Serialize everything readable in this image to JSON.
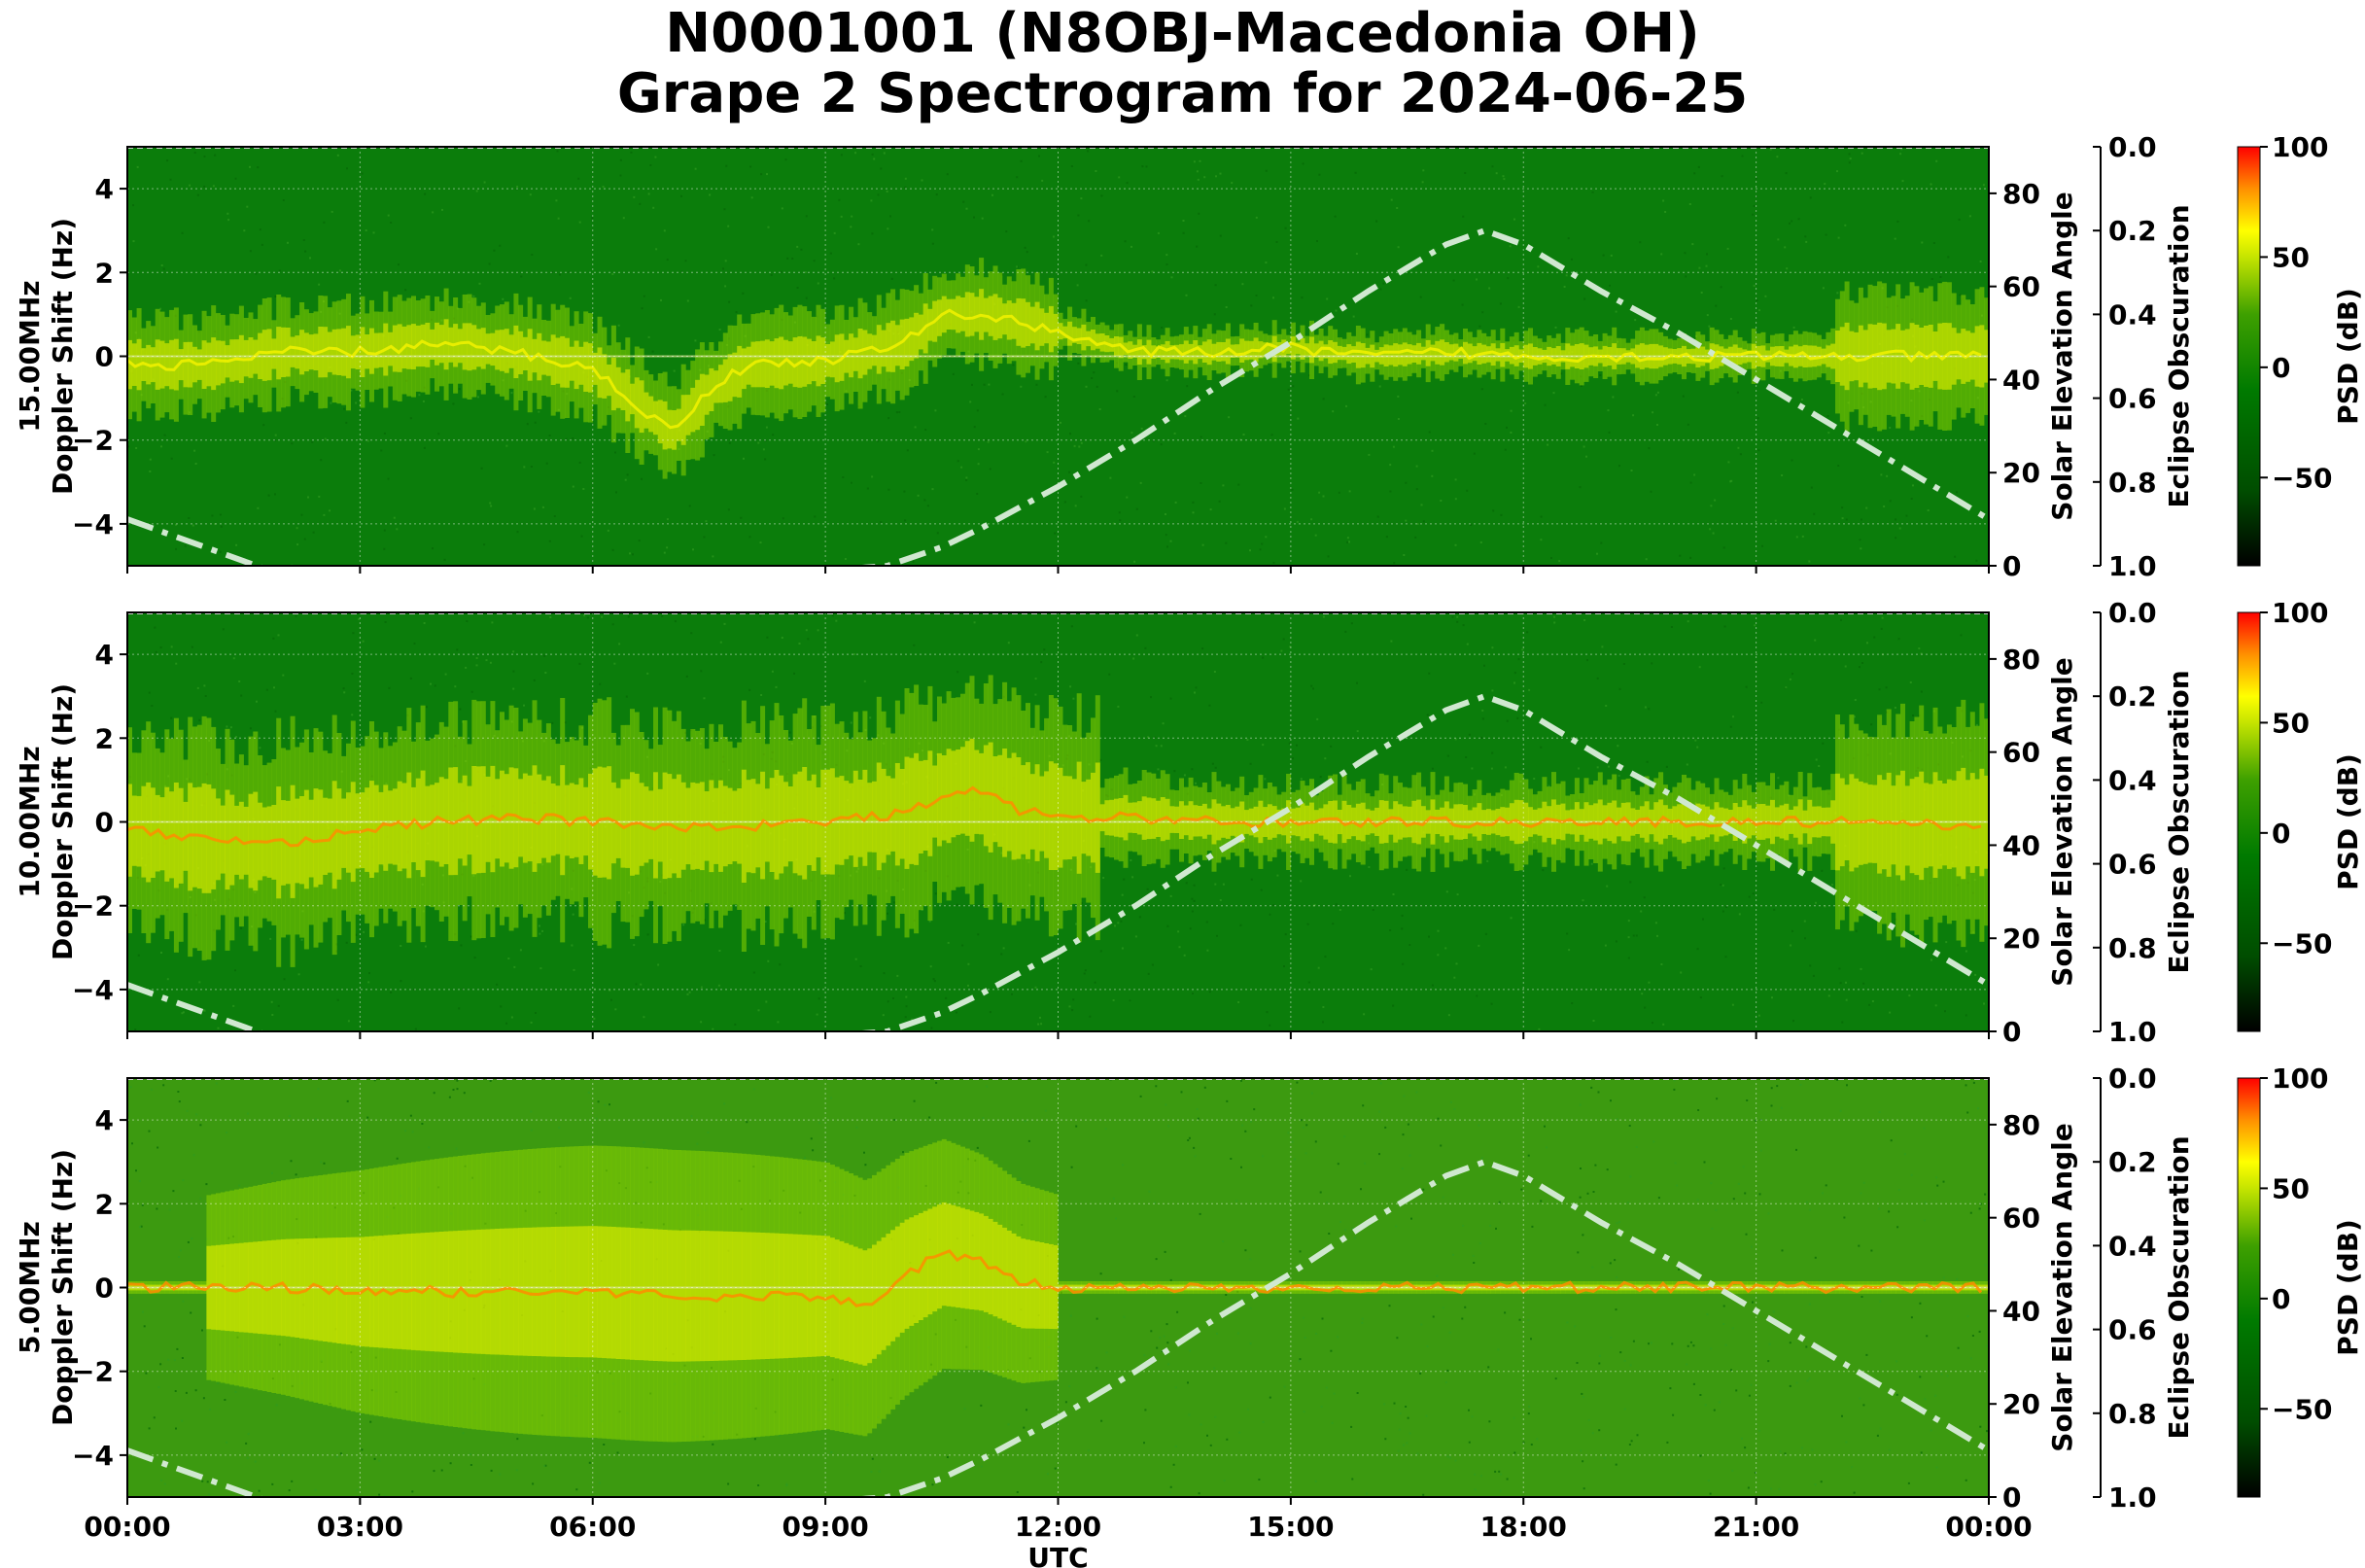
{
  "title": {
    "line1": "N0001001 (N8OBJ-Macedonia OH)",
    "line2": "Grape 2 Spectrogram for 2024-06-25"
  },
  "colors": {
    "colormap": [
      "#000000",
      "#006400",
      "#008000",
      "#7fbf00",
      "#ffff00",
      "#ff8000",
      "#ff0000"
    ],
    "elevation_curve": "#c8e6c8",
    "grid": "#ffffff"
  },
  "chart_data": {
    "type": "heatmap",
    "xlabel": "UTC",
    "x_ticks": [
      "00:00",
      "03:00",
      "06:00",
      "09:00",
      "12:00",
      "15:00",
      "18:00",
      "21:00",
      "00:00"
    ],
    "x_range_hours": [
      0,
      24
    ],
    "panels": [
      {
        "frequency": "15.00MHz",
        "ylabel": "Doppler Shift (Hz)",
        "ylim": [
          -5,
          5
        ],
        "y_ticks": [
          "4",
          "2",
          "0",
          "−2",
          "−4"
        ],
        "y_tick_values": [
          4,
          2,
          0,
          -2,
          -4
        ],
        "doppler_trace": {
          "x_hours": [
            0,
            1,
            2,
            3,
            4,
            5,
            6,
            7,
            7.5,
            8,
            9,
            10,
            10.5,
            11,
            12,
            13,
            14,
            15,
            16,
            17,
            18,
            19,
            20,
            21,
            22,
            23,
            24
          ],
          "y_hz": [
            -0.2,
            -0.2,
            0.1,
            0.1,
            0.3,
            0.1,
            -0.3,
            -1.8,
            -0.8,
            -0.2,
            -0.1,
            0.3,
            1.0,
            1.0,
            0.6,
            0.1,
            0.1,
            0.2,
            0.0,
            0.1,
            0.0,
            0.0,
            0.0,
            0.0,
            0.0,
            0.0,
            0.0
          ]
        }
      },
      {
        "frequency": "10.00MHz",
        "ylabel": "Doppler Shift (Hz)",
        "ylim": [
          -5,
          5
        ],
        "y_ticks": [
          "4",
          "2",
          "0",
          "−2",
          "−4"
        ],
        "y_tick_values": [
          4,
          2,
          0,
          -2,
          -4
        ],
        "doppler_trace": {
          "x_hours": [
            0,
            1,
            2,
            3,
            4,
            5,
            6,
            7,
            8,
            9,
            10,
            10.8,
            11.5,
            12,
            13,
            14,
            15,
            16,
            17,
            18,
            19,
            20,
            21,
            22,
            23,
            24
          ],
          "y_hz": [
            -0.2,
            -0.4,
            -0.5,
            -0.2,
            0.0,
            0.1,
            0.0,
            -0.1,
            -0.1,
            0.0,
            0.2,
            0.8,
            0.3,
            0.1,
            0.1,
            0.0,
            0.0,
            0.0,
            0.0,
            0.0,
            0.0,
            0.0,
            0.0,
            0.0,
            -0.1,
            0.0
          ]
        }
      },
      {
        "frequency": "5.00MHz",
        "ylabel": "Doppler Shift (Hz)",
        "ylim": [
          -5,
          5
        ],
        "y_ticks": [
          "4",
          "2",
          "0",
          "−2",
          "−4"
        ],
        "y_tick_values": [
          4,
          2,
          0,
          -2,
          -4
        ],
        "doppler_trace": {
          "x_hours": [
            0,
            1,
            2,
            3,
            4,
            5,
            6,
            7,
            8,
            9,
            9.5,
            10,
            10.5,
            11,
            11.5,
            12,
            13,
            14,
            15,
            16,
            17,
            18,
            19,
            20,
            21,
            22,
            23,
            24
          ],
          "y_hz": [
            0.0,
            0.0,
            0.0,
            -0.1,
            -0.1,
            -0.1,
            -0.1,
            -0.2,
            -0.2,
            -0.2,
            -0.5,
            0.3,
            0.8,
            0.6,
            0.1,
            0.0,
            0.0,
            0.0,
            0.0,
            0.0,
            0.0,
            0.0,
            0.0,
            0.0,
            0.0,
            0.0,
            0.0,
            0.0
          ]
        }
      }
    ],
    "solar_elevation": {
      "ylabel": "Solar Elevation Angle",
      "ylim": [
        0,
        90
      ],
      "y_ticks": [
        "0",
        "20",
        "40",
        "60",
        "80"
      ],
      "y_tick_values": [
        0,
        20,
        40,
        60,
        80
      ],
      "x_hours": [
        0,
        0.5,
        1,
        1.5,
        2,
        3,
        4,
        5,
        6,
        7,
        8,
        9,
        9.8,
        10.5,
        11,
        12,
        13,
        14,
        15,
        16,
        16.5,
        17,
        17.5,
        18,
        18.5,
        19,
        20,
        21,
        22,
        23,
        24
      ],
      "y_deg": [
        10,
        7,
        4,
        1,
        -2,
        -6,
        -8,
        -7,
        -5,
        -3,
        -2,
        -1,
        0,
        4,
        8,
        17,
        27,
        38,
        48,
        59,
        64,
        69,
        72,
        69,
        64,
        59,
        50,
        40,
        30,
        20,
        10
      ],
      "style": "dash-dot"
    },
    "eclipse_obscuration": {
      "ylabel": "Eclipse Obscuration",
      "ylim": [
        1.0,
        0.0
      ],
      "y_ticks": [
        "0.0",
        "0.2",
        "0.4",
        "0.6",
        "0.8",
        "1.0"
      ],
      "y_tick_values": [
        0.0,
        0.2,
        0.4,
        0.6,
        0.8,
        1.0
      ]
    },
    "colorbar": {
      "label": "PSD (dB)",
      "range": [
        -90,
        100
      ],
      "ticks": [
        "100",
        "50",
        "0",
        "−50"
      ],
      "tick_values": [
        100,
        50,
        0,
        -50
      ]
    }
  }
}
